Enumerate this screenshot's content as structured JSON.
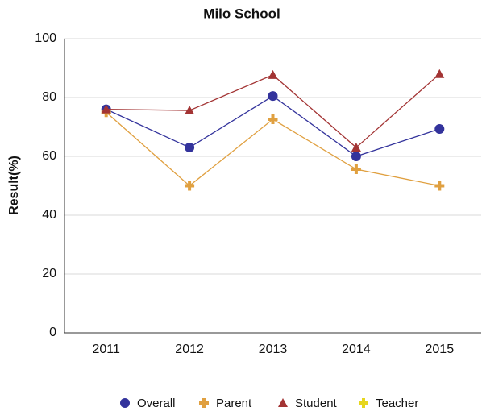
{
  "chart_data": {
    "type": "line",
    "title": "Milo School",
    "y_label": "Result(%)",
    "categories": [
      "2011",
      "2012",
      "2013",
      "2014",
      "2015"
    ],
    "series": [
      {
        "name": "Overall",
        "color": "#33339c",
        "marker": "circle",
        "values": [
          76,
          63,
          80.5,
          60,
          69.3
        ]
      },
      {
        "name": "Parent",
        "color": "#e0a040",
        "marker": "plus",
        "values": [
          75,
          50,
          72.6,
          55.6,
          50
        ]
      },
      {
        "name": "Student",
        "color": "#a33434",
        "marker": "triangle",
        "values": [
          76,
          75.6,
          87.7,
          63,
          88
        ]
      },
      {
        "name": "Teacher",
        "color": "#e6d61e",
        "marker": "plus",
        "values": [
          null,
          null,
          null,
          null,
          null
        ]
      }
    ],
    "ylim": [
      0,
      100
    ],
    "yticks": [
      0,
      20,
      40,
      60,
      80,
      100
    ],
    "grid": true,
    "legend": "bottom"
  }
}
